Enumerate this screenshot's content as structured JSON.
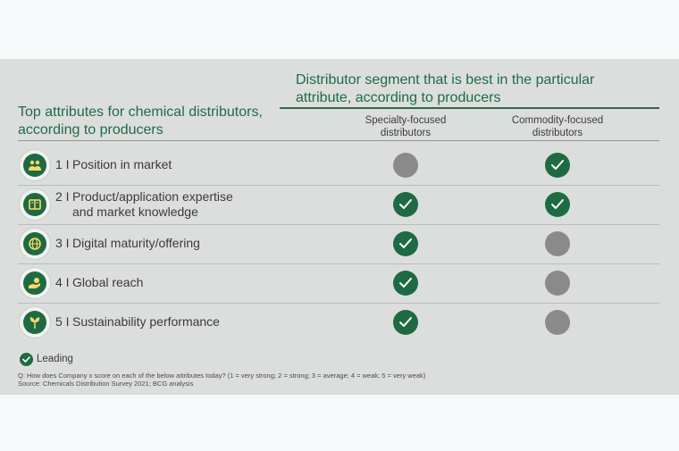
{
  "header": {
    "segment_title": "Distributor segment that is best in the particular attribute, according to producers",
    "attributes_title": "Top attributes for chemical distributors, according to producers",
    "columns": [
      {
        "label": "Specialty-focused distributors"
      },
      {
        "label": "Commodity-focused distributors"
      }
    ]
  },
  "rows": [
    {
      "num": "1 I",
      "label": "Position in market",
      "label_cont": "",
      "icon": "people-icon",
      "specialty": "gray",
      "commodity": "leading"
    },
    {
      "num": "2 I",
      "label": "Product/application expertise",
      "label_cont": "and market knowledge",
      "icon": "book-icon",
      "specialty": "leading",
      "commodity": "leading"
    },
    {
      "num": "3 I",
      "label": "Digital maturity/offering",
      "label_cont": "",
      "icon": "globe-icon",
      "specialty": "leading",
      "commodity": "gray"
    },
    {
      "num": "4 I",
      "label": "Global reach",
      "label_cont": "",
      "icon": "hand-coin-icon",
      "specialty": "leading",
      "commodity": "gray"
    },
    {
      "num": "5 I",
      "label": "Sustainability performance",
      "label_cont": "",
      "icon": "leaf-icon",
      "specialty": "leading",
      "commodity": "gray"
    }
  ],
  "legend": {
    "label": "Leading"
  },
  "footnote": {
    "question": "Q: How does Company x score on each of the below attributes today? (1 = very strong; 2 = strong; 3 = average; 4 = weak; 5 = very weak)",
    "source": "Source: Chemicals Distribution Survey 2021; BCG analysis"
  },
  "colors": {
    "accent": "#1e6a43",
    "neutral": "#8a8a8a",
    "panel": "#dcdedd"
  }
}
